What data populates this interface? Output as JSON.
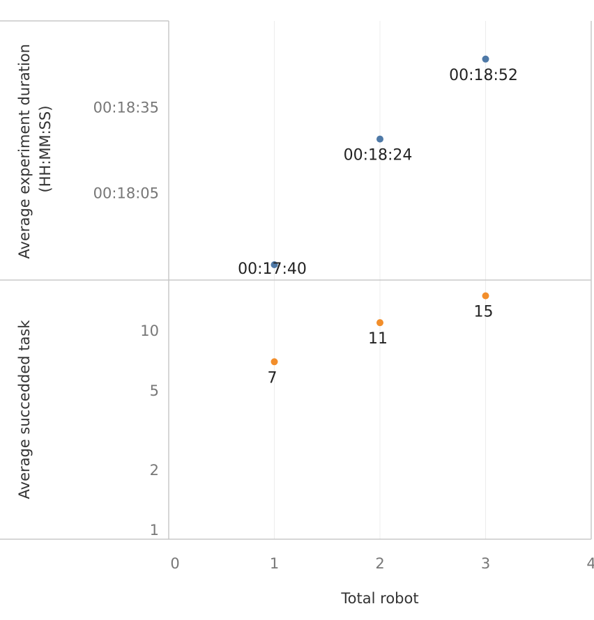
{
  "chart_data": [
    {
      "type": "scatter",
      "ylabel": "Average experiment duration\n(HH:MM:SS)",
      "y_unit": "seconds",
      "yticks": [
        {
          "value": 1115,
          "label": "00:18:35"
        },
        {
          "value": 1085,
          "label": "00:18:05"
        }
      ],
      "ylim": [
        1060,
        1140
      ],
      "color": "#4e79a7",
      "series": [
        {
          "x": [
            1,
            2,
            3
          ],
          "y": [
            1060,
            1104,
            1132
          ],
          "labels": [
            "00:17:40",
            "00:18:24",
            "00:18:52"
          ]
        }
      ]
    },
    {
      "type": "scatter",
      "ylabel": "Average succedded task",
      "yscale": "log",
      "yticks": [
        {
          "value": 10,
          "label": "10"
        },
        {
          "value": 5,
          "label": "5"
        },
        {
          "value": 2,
          "label": "2"
        },
        {
          "value": 1,
          "label": "1"
        }
      ],
      "ylim": [
        0.9,
        18
      ],
      "color": "#f28e2b",
      "series": [
        {
          "x": [
            1,
            2,
            3
          ],
          "y": [
            7,
            11,
            15
          ],
          "labels": [
            "7",
            "11",
            "15"
          ]
        }
      ]
    }
  ],
  "xaxis": {
    "title": "Total robot",
    "ticks": [
      "0",
      "1",
      "2",
      "3",
      "4"
    ],
    "xlim": [
      0,
      4
    ]
  }
}
